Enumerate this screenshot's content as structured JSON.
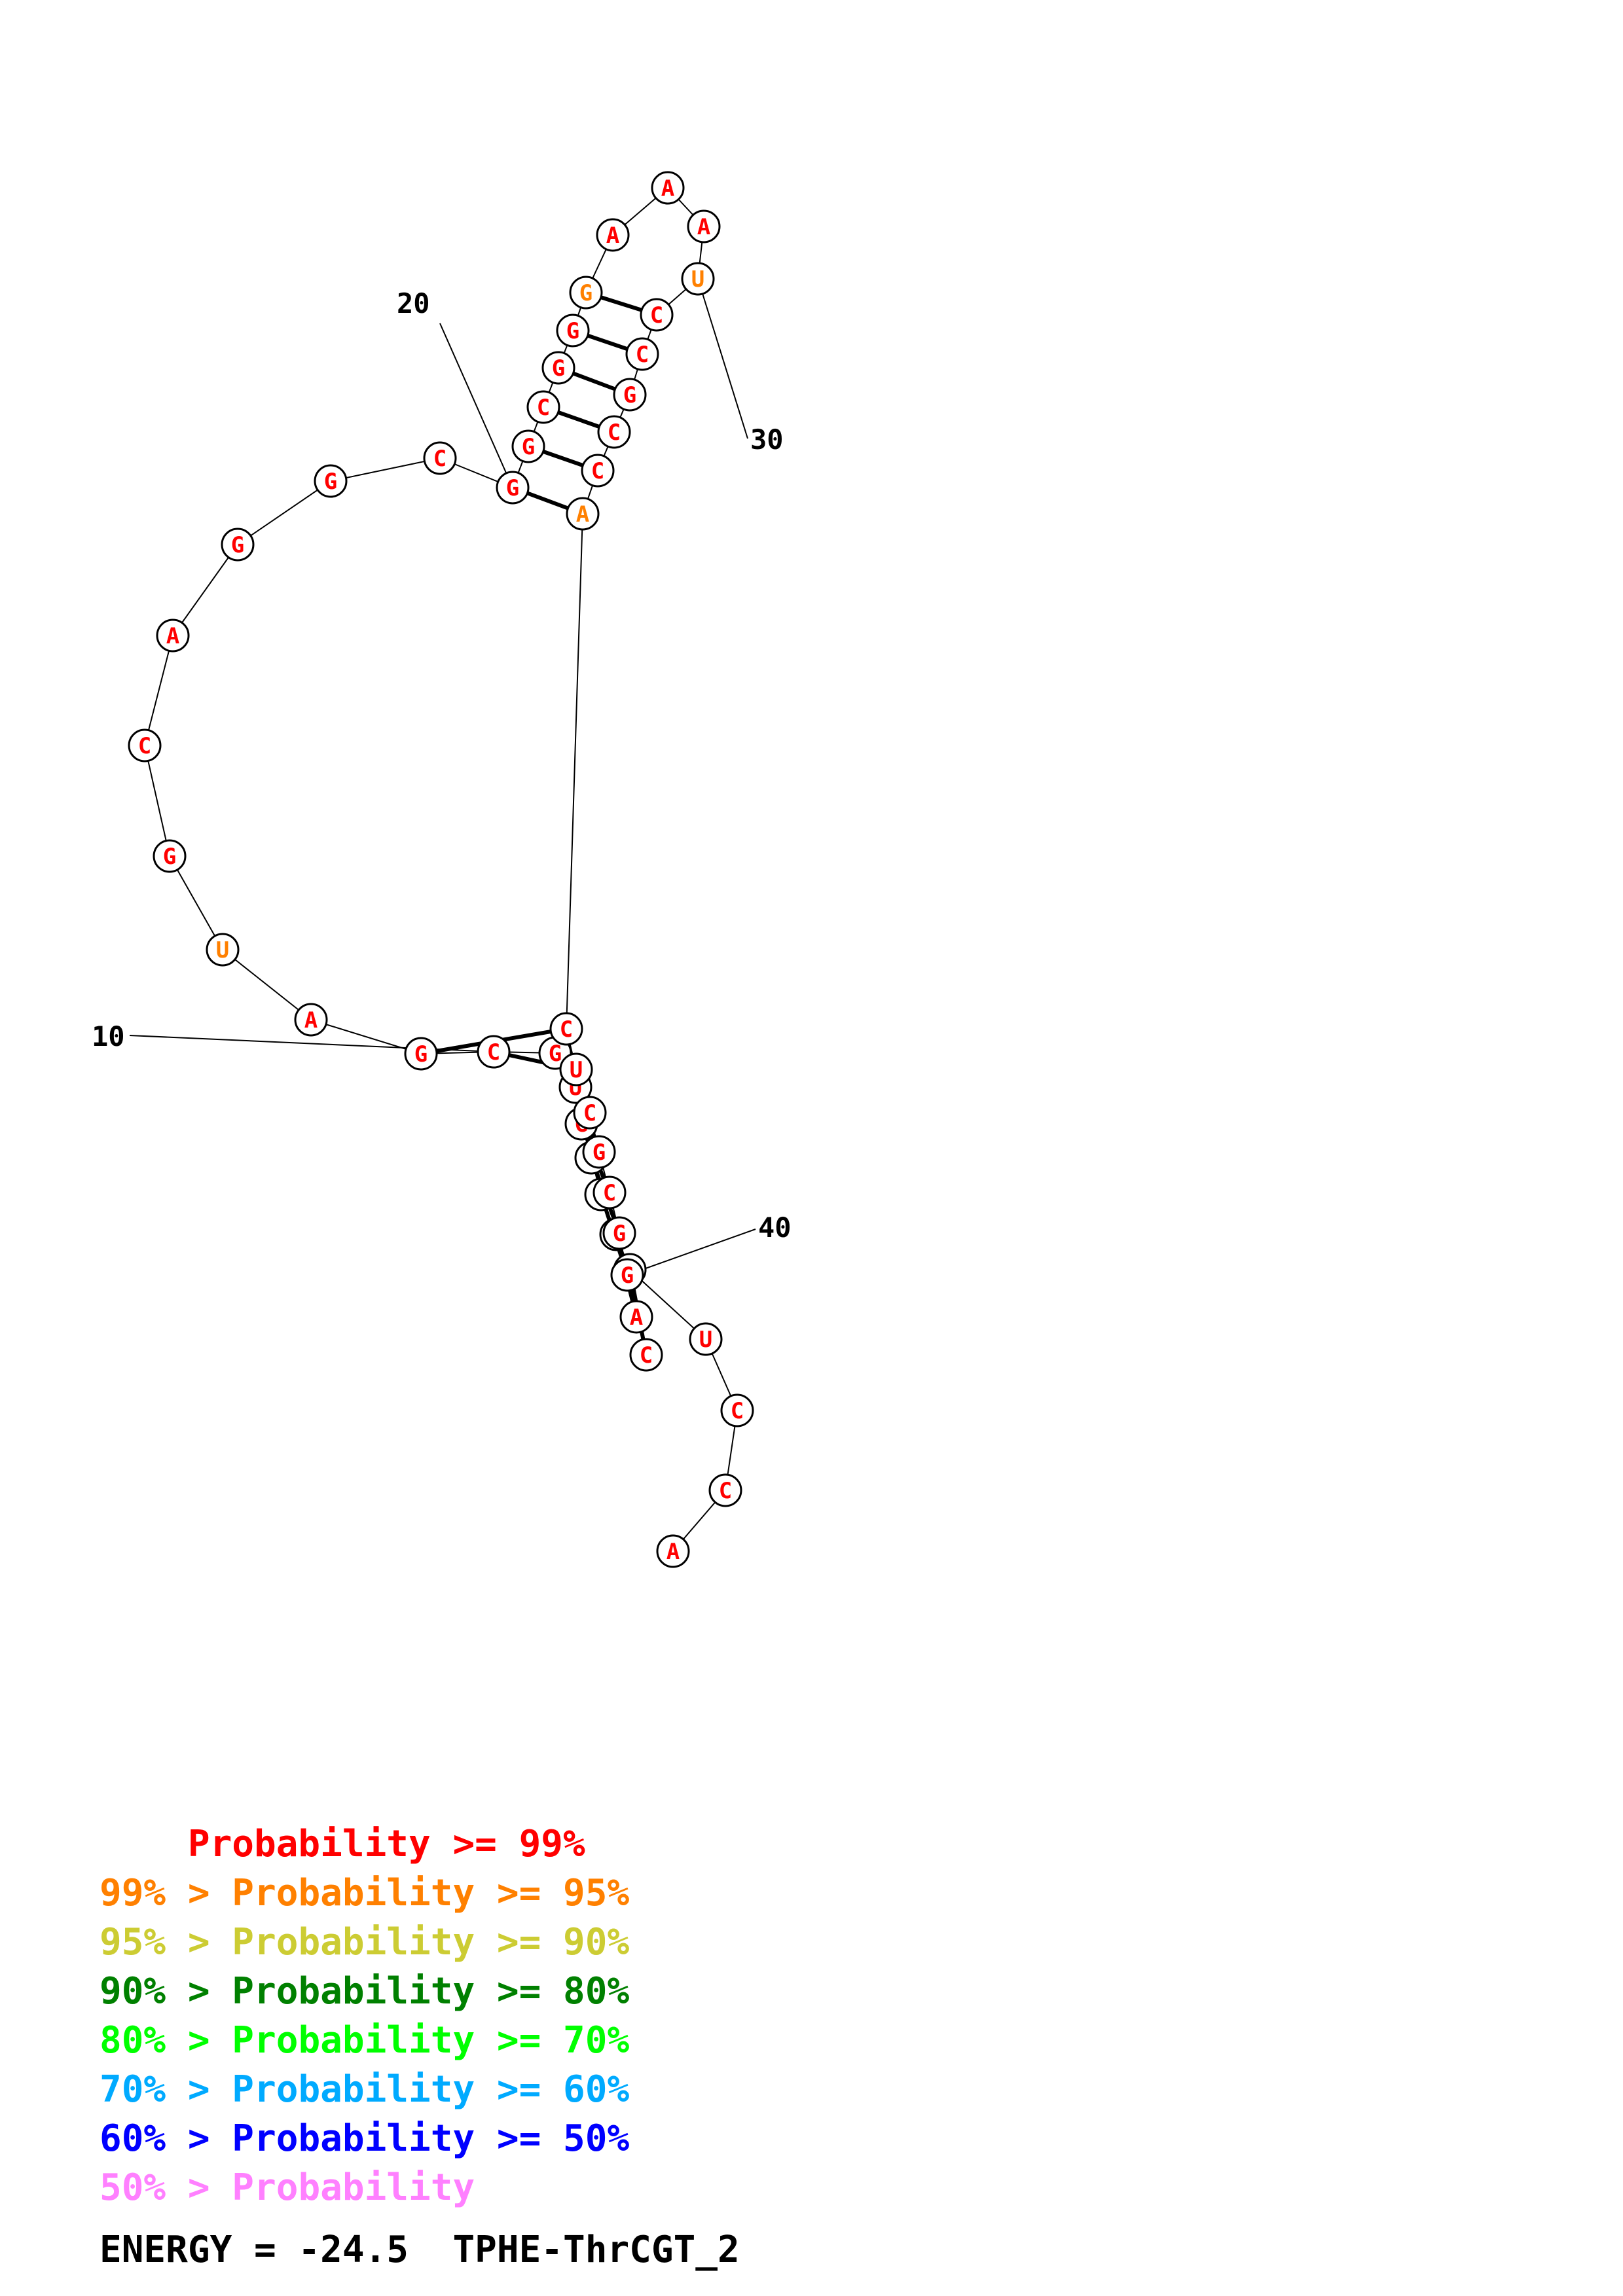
{
  "structure": {
    "sequence": [
      "A",
      "C",
      "C",
      "U",
      "C",
      "C",
      "G",
      "G",
      "G",
      "U",
      "G",
      "C",
      "G",
      "A",
      "U",
      "G",
      "C",
      "A",
      "G",
      "G",
      "C",
      "G",
      "G",
      "C",
      "G",
      "G",
      "G",
      "A",
      "A",
      "A",
      "U",
      "C",
      "C",
      "G",
      "C",
      "C",
      "A",
      "C",
      "U",
      "C",
      "G",
      "C",
      "G",
      "G",
      "A",
      "C"
    ],
    "labels": [
      {
        "text": "10",
        "n": 10
      },
      {
        "text": "20",
        "n": 20
      },
      {
        "text": "30",
        "n": 30
      },
      {
        "text": "40",
        "n": 40
      }
    ]
  },
  "legend": [
    {
      "prefix": "    ",
      "label": "Probability >= 99%",
      "color": "#ff0000"
    },
    {
      "prefix": "99% > ",
      "label": "Probability >= 95%",
      "color": "#ff8000"
    },
    {
      "prefix": "95% > ",
      "label": "Probability >= 90%",
      "color": "#cccc33"
    },
    {
      "prefix": "90% > ",
      "label": "Probability >= 80%",
      "color": "#008000"
    },
    {
      "prefix": "80% > ",
      "label": "Probability >= 70%",
      "color": "#00ff00"
    },
    {
      "prefix": "70% > ",
      "label": "Probability >= 60%",
      "color": "#00aaff"
    },
    {
      "prefix": "60% > ",
      "label": "Probability >= 50%",
      "color": "#0000ff"
    },
    {
      "prefix": "50% > ",
      "label": "Probability",
      "color": "#ff80ff"
    }
  ],
  "energy": {
    "text": "ENERGY = -24.5  TPHE-ThrCGT_2"
  }
}
